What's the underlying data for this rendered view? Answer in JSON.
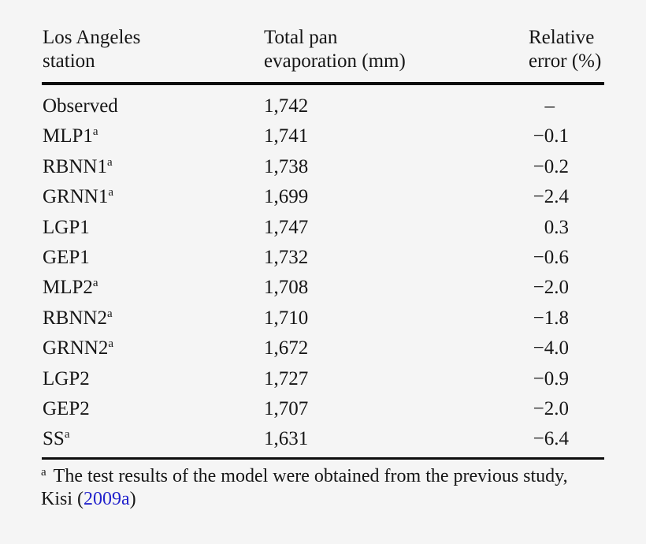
{
  "table": {
    "headers": [
      {
        "line1": "Los Angeles",
        "line2": "station"
      },
      {
        "line1": "Total pan",
        "line2": "evaporation (mm)"
      },
      {
        "line1": "Relative",
        "line2": "error (%)"
      }
    ],
    "rows": [
      {
        "station": "Observed",
        "sup": "",
        "evaporation": "1,742",
        "error": "–"
      },
      {
        "station": "MLP1",
        "sup": "a",
        "evaporation": "1,741",
        "error": "−0.1"
      },
      {
        "station": "RBNN1",
        "sup": "a",
        "evaporation": "1,738",
        "error": "−0.2"
      },
      {
        "station": "GRNN1",
        "sup": "a",
        "evaporation": "1,699",
        "error": "−2.4"
      },
      {
        "station": "LGP1",
        "sup": "",
        "evaporation": "1,747",
        "error": "0.3"
      },
      {
        "station": "GEP1",
        "sup": "",
        "evaporation": "1,732",
        "error": "−0.6"
      },
      {
        "station": "MLP2",
        "sup": "a",
        "evaporation": "1,708",
        "error": "−2.0"
      },
      {
        "station": "RBNN2",
        "sup": "a",
        "evaporation": "1,710",
        "error": "−1.8"
      },
      {
        "station": "GRNN2",
        "sup": "a",
        "evaporation": "1,672",
        "error": "−4.0"
      },
      {
        "station": "LGP2",
        "sup": "",
        "evaporation": "1,727",
        "error": "−0.9"
      },
      {
        "station": "GEP2",
        "sup": "",
        "evaporation": "1,707",
        "error": "−2.0"
      },
      {
        "station": "SS",
        "sup": "a",
        "evaporation": "1,631",
        "error": "−6.4"
      }
    ]
  },
  "footnote": {
    "marker": "a",
    "line1": "The test results of the model were obtained from the previous study,",
    "line2_prefix": "Kisi (",
    "link": "2009a",
    "line2_suffix": ")"
  },
  "colors": {
    "background": "#f5f5f5",
    "text": "#161616",
    "rule": "#0d0d0d",
    "link_blue": "#2222cc"
  }
}
